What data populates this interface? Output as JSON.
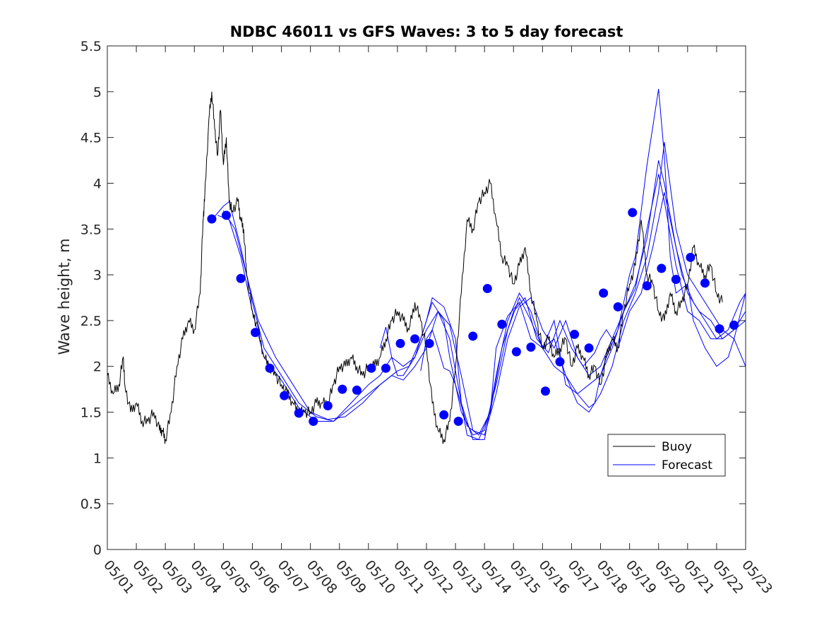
{
  "chart_data": {
    "type": "line",
    "title": "NDBC 46011 vs GFS Waves: 3 to 5 day forecast",
    "xlabel": "",
    "ylabel": "Wave height, m",
    "ylim": [
      0,
      5.5
    ],
    "yticks": [
      "0",
      "0.5",
      "1",
      "1.5",
      "2",
      "2.5",
      "3",
      "3.5",
      "4",
      "4.5",
      "5",
      "5.5"
    ],
    "xlim": [
      0,
      22
    ],
    "xtick_labels": [
      "05/01",
      "05/02",
      "05/03",
      "05/04",
      "05/05",
      "05/06",
      "05/07",
      "05/08",
      "05/09",
      "05/10",
      "05/11",
      "05/12",
      "05/13",
      "05/14",
      "05/15",
      "05/16",
      "05/17",
      "05/18",
      "05/19",
      "05/20",
      "05/21",
      "05/22",
      "05/23"
    ],
    "legend": {
      "placement": "lower-right",
      "entries": [
        "Buoy",
        "Forecast"
      ]
    },
    "colors": {
      "buoy": "#000000",
      "forecast": "#0000ff"
    },
    "series": [
      {
        "name": "Buoy",
        "x": [
          0,
          0.2,
          0.4,
          0.55,
          0.6,
          0.8,
          1.0,
          1.2,
          1.4,
          1.6,
          1.8,
          1.9,
          2.0,
          2.2,
          2.4,
          2.6,
          2.8,
          3.0,
          3.2,
          3.3,
          3.35,
          3.5,
          3.6,
          3.7,
          3.8,
          3.9,
          4.0,
          4.1,
          4.2,
          4.3,
          4.5,
          4.6,
          4.7,
          4.8,
          5.0,
          5.2,
          5.4,
          5.6,
          5.8,
          6.0,
          6.2,
          6.4,
          6.6,
          6.8,
          7.0,
          7.2,
          7.4,
          7.6,
          7.8,
          8.0,
          8.2,
          8.4,
          8.6,
          8.8,
          9.0,
          9.2,
          9.4,
          9.6,
          9.8,
          10.0,
          10.2,
          10.4,
          10.6,
          10.8,
          11.0,
          11.2,
          11.4,
          11.6,
          11.8,
          12.0,
          12.2,
          12.4,
          12.6,
          12.8,
          13.0,
          13.2,
          13.4,
          13.6,
          13.8,
          14.0,
          14.2,
          14.4,
          14.6,
          14.8,
          15.0,
          15.2,
          15.4,
          15.6,
          15.8,
          16.0,
          16.2,
          16.4,
          16.6,
          16.8,
          17.0,
          17.2,
          17.4,
          17.6,
          17.8,
          18.0,
          18.2,
          18.4,
          18.6,
          18.8,
          19.0,
          19.2,
          19.4,
          19.6,
          19.8,
          20.0,
          20.2,
          20.4,
          20.6,
          20.8,
          21.0,
          21.2
        ],
        "y": [
          1.9,
          1.7,
          1.8,
          2.1,
          1.8,
          1.5,
          1.6,
          1.4,
          1.4,
          1.5,
          1.3,
          1.3,
          1.2,
          1.5,
          2.0,
          2.3,
          2.5,
          2.4,
          2.8,
          3.6,
          3.8,
          4.7,
          5.0,
          4.6,
          4.3,
          4.8,
          4.2,
          4.5,
          3.8,
          3.7,
          3.8,
          3.6,
          3.5,
          3.0,
          2.6,
          2.4,
          2.1,
          2.0,
          1.9,
          1.8,
          1.7,
          1.6,
          1.5,
          1.5,
          1.5,
          1.6,
          1.6,
          1.6,
          1.8,
          2.0,
          2.0,
          2.1,
          2.0,
          1.9,
          2.0,
          2.0,
          2.1,
          2.3,
          2.5,
          2.6,
          2.5,
          2.4,
          2.7,
          2.5,
          2.2,
          1.6,
          1.3,
          1.2,
          1.4,
          2.0,
          2.8,
          3.6,
          3.5,
          3.8,
          3.9,
          4.0,
          3.6,
          3.2,
          3.1,
          2.9,
          3.1,
          3.3,
          2.8,
          2.5,
          2.2,
          2.3,
          2.1,
          2.2,
          2.3,
          2.0,
          2.2,
          2.1,
          1.9,
          2.0,
          1.8,
          2.1,
          2.3,
          2.2,
          2.6,
          2.9,
          3.1,
          3.6,
          3.0,
          2.9,
          2.6,
          2.5,
          2.8,
          2.6,
          2.7,
          2.9,
          3.3,
          3.1,
          3.0,
          3.1,
          2.8,
          2.7
        ]
      },
      {
        "name": "Forecast",
        "markers": {
          "x": [
            3.6,
            4.1,
            4.6,
            5.1,
            5.6,
            6.1,
            6.6,
            7.1,
            7.6,
            8.1,
            8.6,
            9.1,
            9.6,
            10.1,
            10.6,
            11.1,
            11.6,
            12.1,
            12.6,
            13.1,
            13.6,
            14.1,
            14.6,
            15.1,
            15.6,
            16.1,
            16.6,
            17.1,
            17.6,
            18.1,
            18.6,
            19.1,
            19.6,
            20.1,
            20.6,
            21.1,
            21.6
          ],
          "y": [
            3.61,
            3.65,
            2.96,
            2.37,
            1.98,
            1.68,
            1.49,
            1.4,
            1.57,
            1.75,
            1.74,
            1.98,
            1.98,
            2.25,
            2.3,
            2.25,
            1.47,
            1.4,
            2.33,
            2.85,
            2.46,
            2.16,
            2.21,
            1.73,
            2.05,
            2.35,
            2.2,
            2.8,
            2.65,
            3.68,
            2.88,
            3.07,
            2.95,
            3.19,
            2.91,
            2.41,
            2.45
          ]
        },
        "lines": [
          {
            "x": [
              3.6,
              4.0,
              4.2,
              4.6,
              5.0,
              5.4,
              6.0,
              6.6,
              7.2,
              7.8,
              8.4,
              9.0,
              9.4,
              9.8,
              10.2,
              10.6,
              11.0,
              11.2,
              11.6,
              12.0,
              12.2,
              12.4,
              12.8,
              13.2,
              13.4,
              13.8,
              14.2,
              14.6,
              15.0,
              15.4,
              15.8,
              16.2,
              16.6,
              16.8,
              17.0,
              17.2,
              17.6,
              18.0,
              18.2,
              18.6,
              19.0,
              19.2,
              19.4,
              19.6,
              20.0,
              20.2,
              20.6,
              21.0,
              21.4,
              21.6,
              22.0
            ],
            "y": [
              3.6,
              3.75,
              3.8,
              3.3,
              2.7,
              2.2,
              1.9,
              1.6,
              1.45,
              1.4,
              1.6,
              1.8,
              1.9,
              2.1,
              2.0,
              2.1,
              2.5,
              2.75,
              2.65,
              2.3,
              1.6,
              1.25,
              1.2,
              1.5,
              2.2,
              2.55,
              2.7,
              2.3,
              2.2,
              2.5,
              1.8,
              1.7,
              1.55,
              1.6,
              1.9,
              2.1,
              2.4,
              3.0,
              3.2,
              4.2,
              5.03,
              4.3,
              3.2,
              2.8,
              2.9,
              2.5,
              2.2,
              2.0,
              2.1,
              2.3,
              2.8
            ]
          },
          {
            "x": [
              3.8,
              4.2,
              4.6,
              5.0,
              5.4,
              6.0,
              6.6,
              7.2,
              7.8,
              8.4,
              9.0,
              9.6,
              10.0,
              10.4,
              10.8,
              11.2,
              11.6,
              11.8,
              12.2,
              12.6,
              13.0,
              13.4,
              13.8,
              14.2,
              14.6,
              15.0,
              15.4,
              15.8,
              16.2,
              16.6,
              17.0,
              17.4,
              17.8,
              18.2,
              18.6,
              19.0,
              19.2,
              19.6,
              20.0,
              20.4,
              20.8,
              21.2,
              21.6,
              22.0
            ],
            "y": [
              3.65,
              3.6,
              3.2,
              2.6,
              2.1,
              1.85,
              1.55,
              1.4,
              1.4,
              1.55,
              1.7,
              1.85,
              1.95,
              2.0,
              2.3,
              2.7,
              2.5,
              2.1,
              1.5,
              1.25,
              1.3,
              1.8,
              2.4,
              2.75,
              2.5,
              2.2,
              2.3,
              1.9,
              1.6,
              1.5,
              1.7,
              2.0,
              2.5,
              2.8,
              3.2,
              3.9,
              4.45,
              3.5,
              3.0,
              2.8,
              2.6,
              2.4,
              2.3,
              2.0
            ]
          },
          {
            "x": [
              4.0,
              4.4,
              4.8,
              5.2,
              5.8,
              6.4,
              7.0,
              7.6,
              8.2,
              8.8,
              9.4,
              9.8,
              10.2,
              10.6,
              11.0,
              11.4,
              11.8,
              12.2,
              12.6,
              13.0,
              13.4,
              13.8,
              14.2,
              14.6,
              15.0,
              15.4,
              15.8,
              16.2,
              16.6,
              17.0,
              17.4,
              17.8,
              18.2,
              18.6,
              19.0,
              19.2,
              19.6,
              20.0,
              20.4,
              20.8,
              21.2,
              21.6,
              22.0
            ],
            "y": [
              3.7,
              3.5,
              3.0,
              2.5,
              2.1,
              1.8,
              1.5,
              1.42,
              1.45,
              1.6,
              1.8,
              1.9,
              1.85,
              2.0,
              2.2,
              2.6,
              2.45,
              1.9,
              1.3,
              1.25,
              1.7,
              2.3,
              2.65,
              2.75,
              2.4,
              2.2,
              2.5,
              2.1,
              1.9,
              2.0,
              2.3,
              2.6,
              2.85,
              3.5,
              4.1,
              3.8,
              3.1,
              2.6,
              2.5,
              2.3,
              2.3,
              2.4,
              2.5
            ]
          },
          {
            "x": [
              9.4,
              9.6,
              9.8,
              10.0,
              10.2,
              10.6,
              11.0,
              11.4,
              11.8,
              12.2,
              12.6,
              13.0,
              13.4,
              13.8,
              14.2,
              14.6,
              15.0,
              15.4,
              15.8,
              16.2,
              16.6,
              17.0,
              17.4,
              17.8,
              18.2,
              18.6,
              19.0,
              19.2,
              19.6,
              20.0,
              20.4,
              20.8,
              21.2,
              21.6,
              22.0
            ],
            "y": [
              2.2,
              2.43,
              2.1,
              1.9,
              1.9,
              2.1,
              2.4,
              2.6,
              2.3,
              1.6,
              1.2,
              1.2,
              1.9,
              2.5,
              2.8,
              2.6,
              2.2,
              2.0,
              1.9,
              1.7,
              1.8,
              1.9,
              2.2,
              2.6,
              2.9,
              3.4,
              4.25,
              4.0,
              3.3,
              2.8,
              2.6,
              2.5,
              2.3,
              2.4,
              2.6
            ]
          },
          {
            "x": [
              10.8,
              11.0,
              11.2,
              11.4,
              11.6,
              11.8,
              12.0,
              12.4,
              12.8,
              13.2,
              13.6,
              14.0,
              14.4,
              14.8,
              15.2,
              15.6,
              16.0,
              16.4,
              16.8,
              17.0,
              17.2,
              17.6,
              18.0,
              18.4,
              18.8,
              19.2,
              19.4,
              19.8,
              20.2,
              20.6,
              21.0,
              21.4,
              21.8,
              22.0
            ],
            "y": [
              1.95,
              2.3,
              2.4,
              2.2,
              1.98,
              1.95,
              1.8,
              1.35,
              1.25,
              1.5,
              2.2,
              2.6,
              2.75,
              2.3,
              2.15,
              2.5,
              2.2,
              2.0,
              2.15,
              2.3,
              2.4,
              2.2,
              2.6,
              2.8,
              3.3,
              3.9,
              3.6,
              3.0,
              2.7,
              2.5,
              2.3,
              2.4,
              2.7,
              2.8
            ]
          }
        ]
      }
    ]
  }
}
